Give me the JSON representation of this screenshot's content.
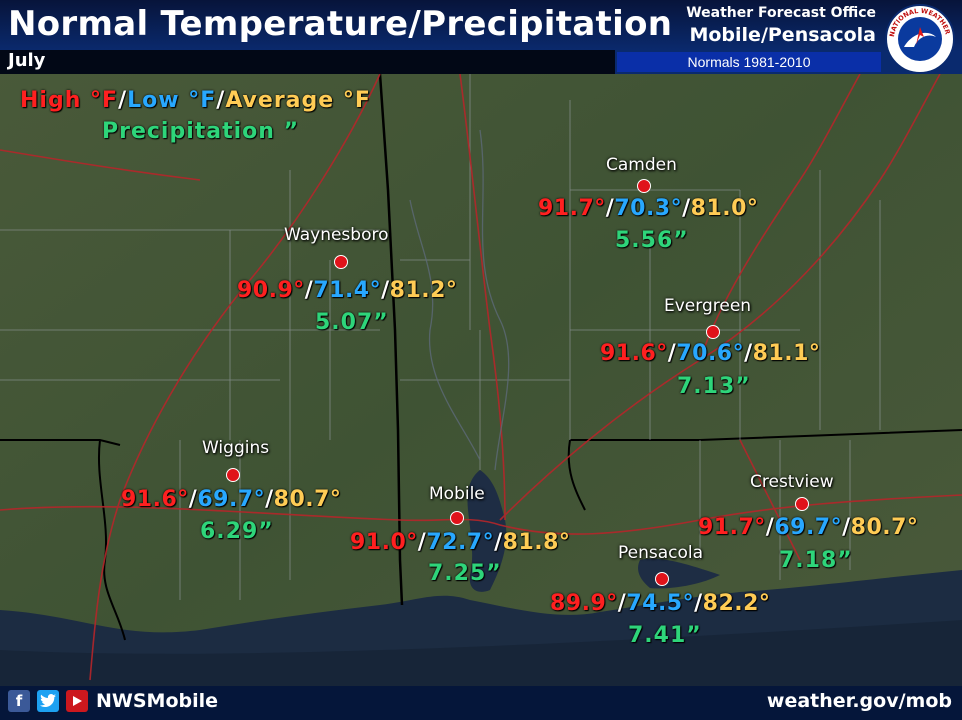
{
  "header": {
    "title": "Normal Temperature/Precipitation",
    "month": "July",
    "office_line1": "Weather Forecast Office",
    "office_line2": "Mobile/Pensacola",
    "normals": "Normals 1981-2010"
  },
  "legend": {
    "high": "High °F",
    "low": "Low °F",
    "average": "Average °F",
    "sep": "/",
    "precip": "Precipitation ”"
  },
  "cities": [
    {
      "name": "Camden",
      "high": "91.7°",
      "low": "70.3°",
      "avg": "81.0°",
      "precip": "5.56”"
    },
    {
      "name": "Waynesboro",
      "high": "90.9°",
      "low": "71.4°",
      "avg": "81.2°",
      "precip": "5.07”"
    },
    {
      "name": "Evergreen",
      "high": "91.6°",
      "low": "70.6°",
      "avg": "81.1°",
      "precip": "7.13”"
    },
    {
      "name": "Wiggins",
      "high": "91.6°",
      "low": "69.7°",
      "avg": "80.7°",
      "precip": "6.29”"
    },
    {
      "name": "Mobile",
      "high": "91.0°",
      "low": "72.7°",
      "avg": "81.8°",
      "precip": "7.25”"
    },
    {
      "name": "Crestview",
      "high": "91.7°",
      "low": "69.7°",
      "avg": "80.7°",
      "precip": "7.18”"
    },
    {
      "name": "Pensacola",
      "high": "89.9°",
      "low": "74.5°",
      "avg": "82.2°",
      "precip": "7.41”"
    }
  ],
  "footer": {
    "handle": "NWSMobile",
    "website": "weather.gov/mob",
    "icons": [
      "facebook-icon",
      "twitter-icon",
      "youtube-icon"
    ]
  },
  "logo_text": "NATIONAL WEATHER SERVICE",
  "colors": {
    "high": "#ff2020",
    "low": "#28a8ff",
    "average": "#ffcc55",
    "precip": "#2ed57a",
    "station": "#e0131a"
  }
}
